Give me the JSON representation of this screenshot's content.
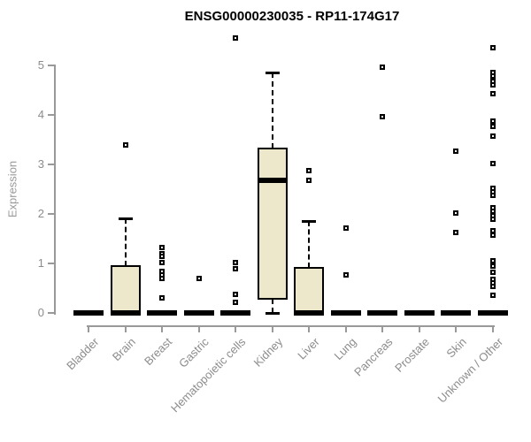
{
  "chart_data": {
    "type": "boxplot",
    "title": "ENSG00000230035 - RP11-174G17",
    "ylabel": "Expression",
    "ylim": [
      0,
      5.6
    ],
    "yticks": [
      0,
      1,
      2,
      3,
      4,
      5
    ],
    "grid": false,
    "legend": "none",
    "box_fill": "#EDE7CB",
    "box_border": "#000000",
    "axis_color": "#999999",
    "label_color": "#8C8C8C",
    "title_color": "#000000",
    "categories": [
      "Bladder",
      "Brain",
      "Breast",
      "Gastric",
      "Hematopoietic cells",
      "Kidney",
      "Liver",
      "Lung",
      "Pancreas",
      "Prostate",
      "Skin",
      "Unknown / Other"
    ],
    "series": [
      {
        "category": "Bladder",
        "q1": 0,
        "median": 0,
        "q3": 0,
        "whisker_low": 0,
        "whisker_high": 0,
        "outliers": []
      },
      {
        "category": "Brain",
        "q1": 0,
        "median": 0,
        "q3": 0.95,
        "whisker_low": 0,
        "whisker_high": 1.91,
        "outliers": [
          3.39
        ]
      },
      {
        "category": "Breast",
        "q1": 0,
        "median": 0,
        "q3": 0,
        "whisker_low": 0,
        "whisker_high": 0,
        "outliers": [
          1.33,
          1.2,
          1.14,
          1.02,
          0.84,
          0.77,
          0.7,
          0.31
        ]
      },
      {
        "category": "Gastric",
        "q1": 0,
        "median": 0,
        "q3": 0,
        "whisker_low": 0,
        "whisker_high": 0,
        "outliers": [
          0.7
        ]
      },
      {
        "category": "Hematopoietic cells",
        "q1": 0,
        "median": 0,
        "q3": 0,
        "whisker_low": 0,
        "whisker_high": 0,
        "outliers": [
          5.56,
          1.02,
          0.9,
          0.37,
          0.22
        ]
      },
      {
        "category": "Kidney",
        "q1": 0.28,
        "median": 2.67,
        "q3": 3.33,
        "whisker_low": 0,
        "whisker_high": 4.85,
        "outliers": []
      },
      {
        "category": "Liver",
        "q1": 0,
        "median": 0,
        "q3": 0.91,
        "whisker_low": 0,
        "whisker_high": 1.86,
        "outliers": [
          2.88,
          2.67
        ]
      },
      {
        "category": "Lung",
        "q1": 0,
        "median": 0,
        "q3": 0,
        "whisker_low": 0,
        "whisker_high": 0,
        "outliers": [
          1.71,
          0.76
        ]
      },
      {
        "category": "Pancreas",
        "q1": 0,
        "median": 0,
        "q3": 0,
        "whisker_low": 0,
        "whisker_high": 0,
        "outliers": [
          4.96,
          3.97
        ]
      },
      {
        "category": "Prostate",
        "q1": 0,
        "median": 0,
        "q3": 0,
        "whisker_low": 0,
        "whisker_high": 0,
        "outliers": []
      },
      {
        "category": "Skin",
        "q1": 0,
        "median": 0,
        "q3": 0,
        "whisker_low": 0,
        "whisker_high": 0,
        "outliers": [
          3.27,
          2.02,
          1.63
        ]
      },
      {
        "category": "Unknown / Other",
        "q1": 0,
        "median": 0,
        "q3": 0,
        "whisker_low": 0,
        "whisker_high": 0,
        "outliers": [
          5.36,
          4.86,
          4.78,
          4.68,
          4.6,
          4.42,
          3.88,
          3.77,
          3.58,
          3.02,
          2.52,
          2.44,
          2.37,
          2.13,
          2.05,
          1.97,
          1.9,
          1.66,
          1.58,
          1.05,
          0.95,
          0.83,
          0.68,
          0.6,
          0.54,
          0.35
        ]
      }
    ]
  }
}
